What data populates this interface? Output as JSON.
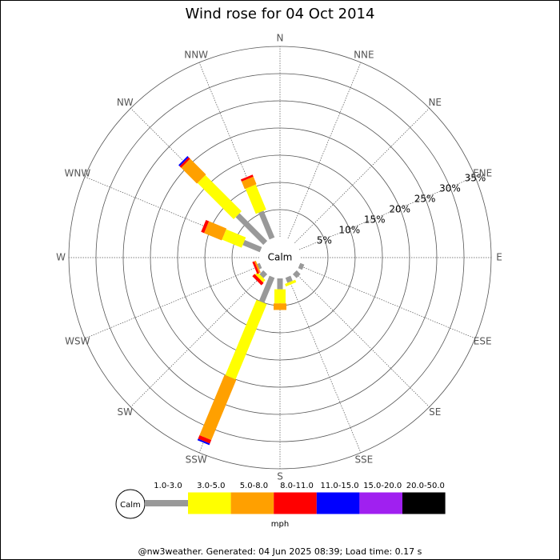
{
  "chart_data": {
    "type": "windrose",
    "title": "Wind rose for 04 Oct 2014",
    "categories": [
      "N",
      "NNE",
      "NE",
      "ENE",
      "E",
      "ESE",
      "SE",
      "SSE",
      "S",
      "SSW",
      "SW",
      "WSW",
      "W",
      "WNW",
      "NW",
      "NNW"
    ],
    "series": [
      {
        "name": "1.0-3.0",
        "color": "#999999",
        "values": [
          0,
          0,
          0,
          0,
          0,
          0.8,
          1.0,
          1.0,
          2,
          5,
          1,
          0.5,
          0,
          3.4,
          7.2,
          5.3
        ]
      },
      {
        "name": "3.0-5.0",
        "color": "#ffff00",
        "values": [
          0,
          0,
          0,
          0,
          0,
          0,
          0,
          0.5,
          2.6,
          15,
          0.6,
          0,
          0,
          3.9,
          9.4,
          5
        ]
      },
      {
        "name": "5.0-8.0",
        "color": "#ffa000",
        "values": [
          0,
          0,
          0,
          0,
          0,
          0,
          0,
          0,
          1.2,
          12,
          0,
          0.3,
          0,
          3.5,
          4.1,
          1.5
        ]
      },
      {
        "name": "8.0-11.0",
        "color": "#ff0000",
        "values": [
          0,
          0,
          0,
          0,
          0,
          0,
          0,
          0,
          0,
          0.7,
          0.6,
          0.4,
          0,
          0.6,
          0.4,
          0.4
        ]
      },
      {
        "name": "11.0-15.0",
        "color": "#0000ff",
        "values": [
          0,
          0,
          0,
          0,
          0,
          0,
          0,
          0,
          0,
          0.3,
          0,
          0,
          0,
          0,
          0.3,
          0
        ]
      },
      {
        "name": "15.0-20.0",
        "color": "#a020f0",
        "values": [
          0,
          0,
          0,
          0,
          0,
          0,
          0,
          0,
          0,
          0,
          0,
          0,
          0,
          0,
          0,
          0
        ]
      },
      {
        "name": "20.0-50.0",
        "color": "#000000",
        "values": [
          0,
          0,
          0,
          0,
          0,
          0,
          0,
          0,
          0,
          0,
          0,
          0,
          0,
          0,
          0,
          0
        ]
      }
    ],
    "rlim": [
      0,
      35
    ],
    "rticks": [
      {
        "value": 5,
        "label": "5%"
      },
      {
        "value": 10,
        "label": "10%"
      },
      {
        "value": 15,
        "label": "15%"
      },
      {
        "value": 20,
        "label": "20%"
      },
      {
        "value": 25,
        "label": "25%"
      },
      {
        "value": 30,
        "label": "30%"
      },
      {
        "value": 35,
        "label": "35%"
      }
    ],
    "calm_label": "Calm",
    "units": "mph",
    "footer": "@nw3weather. Generated: 04 Jun 2025 08:39; Load time: 0.17 s"
  }
}
